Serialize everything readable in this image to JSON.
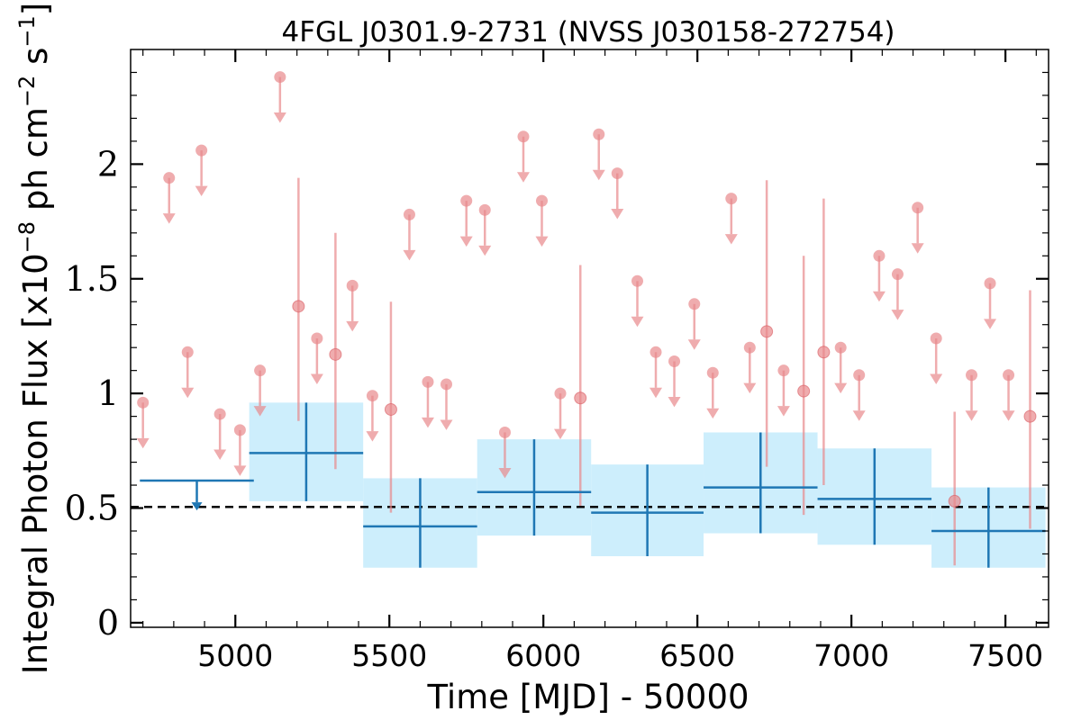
{
  "chart_data": {
    "type": "scatter",
    "title": "4FGL J0301.9-2731 (NVSS J030158-272754)",
    "xlabel": "Time [MJD] - 50000",
    "ylabel_prefix": "Integral Photon Flux [x10",
    "ylabel_exp1": "−8",
    "ylabel_mid": " ph cm",
    "ylabel_exp2": "−2",
    "ylabel_mid2": " s",
    "ylabel_exp3": "−1",
    "ylabel_suffix": "]",
    "xlim": [
      4660,
      7640
    ],
    "ylim": [
      -0.02,
      2.5
    ],
    "xticks": [
      5000,
      5500,
      6000,
      6500,
      7000,
      7500
    ],
    "xtick_labels": [
      "5000",
      "5500",
      "6000",
      "6500",
      "7000",
      "7500"
    ],
    "yticks": [
      0,
      0.5,
      1,
      1.5,
      2
    ],
    "ytick_labels": [
      "0",
      "0.5",
      "1",
      "1.5",
      "2"
    ],
    "mean_flux": 0.505,
    "colors": {
      "short_bin": "#e8898c",
      "long_bin": "#1f77b4",
      "band": "#cdeefc",
      "mean_line": "#000000"
    },
    "series": [
      {
        "kind": "short_bins",
        "upper_limits": [
          {
            "x": 4700,
            "y": 0.96
          },
          {
            "x": 4785,
            "y": 1.94
          },
          {
            "x": 4845,
            "y": 1.18
          },
          {
            "x": 4890,
            "y": 2.06
          },
          {
            "x": 4950,
            "y": 0.91
          },
          {
            "x": 5015,
            "y": 0.84
          },
          {
            "x": 5080,
            "y": 1.1
          },
          {
            "x": 5145,
            "y": 2.38
          },
          {
            "x": 5265,
            "y": 1.24
          },
          {
            "x": 5380,
            "y": 1.47
          },
          {
            "x": 5445,
            "y": 0.99
          },
          {
            "x": 5565,
            "y": 1.78
          },
          {
            "x": 5625,
            "y": 1.05
          },
          {
            "x": 5685,
            "y": 1.04
          },
          {
            "x": 5750,
            "y": 1.84
          },
          {
            "x": 5810,
            "y": 1.8
          },
          {
            "x": 5875,
            "y": 0.83
          },
          {
            "x": 5935,
            "y": 2.12
          },
          {
            "x": 5995,
            "y": 1.84
          },
          {
            "x": 6055,
            "y": 1.0
          },
          {
            "x": 6180,
            "y": 2.13
          },
          {
            "x": 6240,
            "y": 1.96
          },
          {
            "x": 6305,
            "y": 1.49
          },
          {
            "x": 6365,
            "y": 1.18
          },
          {
            "x": 6425,
            "y": 1.14
          },
          {
            "x": 6490,
            "y": 1.39
          },
          {
            "x": 6550,
            "y": 1.09
          },
          {
            "x": 6610,
            "y": 1.85
          },
          {
            "x": 6670,
            "y": 1.2
          },
          {
            "x": 6780,
            "y": 1.1
          },
          {
            "x": 6965,
            "y": 1.2
          },
          {
            "x": 7025,
            "y": 1.08
          },
          {
            "x": 7090,
            "y": 1.6
          },
          {
            "x": 7150,
            "y": 1.52
          },
          {
            "x": 7215,
            "y": 1.81
          },
          {
            "x": 7275,
            "y": 1.24
          },
          {
            "x": 7390,
            "y": 1.08
          },
          {
            "x": 7450,
            "y": 1.48
          },
          {
            "x": 7510,
            "y": 1.08
          }
        ],
        "detections": [
          {
            "x": 5205,
            "y": 1.38,
            "lo": 0.88,
            "hi": 1.94
          },
          {
            "x": 5325,
            "y": 1.17,
            "lo": 0.67,
            "hi": 1.7
          },
          {
            "x": 5505,
            "y": 0.93,
            "lo": 0.48,
            "hi": 1.4
          },
          {
            "x": 6120,
            "y": 0.98,
            "lo": 0.51,
            "hi": 1.56
          },
          {
            "x": 6725,
            "y": 1.27,
            "lo": 0.68,
            "hi": 1.93
          },
          {
            "x": 6845,
            "y": 1.01,
            "lo": 0.47,
            "hi": 1.6
          },
          {
            "x": 6910,
            "y": 1.18,
            "lo": 0.6,
            "hi": 1.85
          },
          {
            "x": 7335,
            "y": 0.53,
            "lo": 0.25,
            "hi": 0.92
          },
          {
            "x": 7580,
            "y": 0.9,
            "lo": 0.41,
            "hi": 1.45
          }
        ]
      },
      {
        "kind": "long_bins",
        "upper_limits": [
          {
            "x0": 4690,
            "x1": 5060,
            "y": 0.62
          }
        ],
        "detections": [
          {
            "x0": 5045,
            "x1": 5415,
            "y": 0.74,
            "lo": 0.53,
            "hi": 0.96
          },
          {
            "x0": 5415,
            "x1": 5785,
            "y": 0.42,
            "lo": 0.24,
            "hi": 0.63
          },
          {
            "x0": 5785,
            "x1": 6155,
            "y": 0.57,
            "lo": 0.38,
            "hi": 0.8
          },
          {
            "x0": 6155,
            "x1": 6520,
            "y": 0.48,
            "lo": 0.29,
            "hi": 0.69
          },
          {
            "x0": 6520,
            "x1": 6890,
            "y": 0.59,
            "lo": 0.39,
            "hi": 0.83
          },
          {
            "x0": 6890,
            "x1": 7260,
            "y": 0.54,
            "lo": 0.34,
            "hi": 0.76
          },
          {
            "x0": 7260,
            "x1": 7630,
            "y": 0.4,
            "lo": 0.24,
            "hi": 0.59
          }
        ]
      }
    ]
  }
}
